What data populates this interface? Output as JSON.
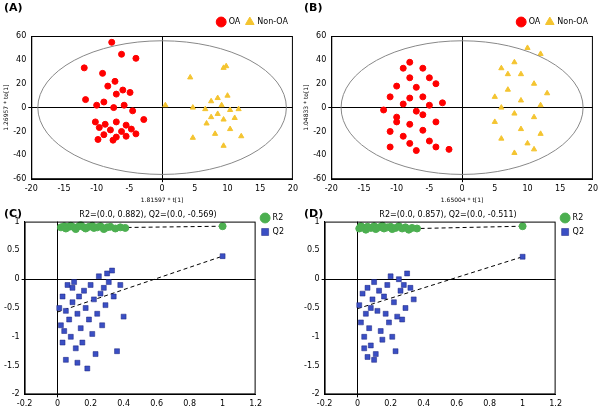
{
  "chart_data": [
    {
      "panel": "(A)",
      "type": "scatter",
      "x_label": "1.81597 * t[1]",
      "y_label": "1.26957 * to[1]",
      "xlim": [
        -20,
        20
      ],
      "xticks": [
        -20,
        -15,
        -10,
        -5,
        0,
        5,
        10,
        15,
        20
      ],
      "ylim": [
        -60,
        60
      ],
      "yticks": [
        -60,
        -40,
        -20,
        0,
        20,
        40,
        60
      ],
      "grid": false,
      "legend": "top-right",
      "ellipse": {
        "center": [
          0,
          0
        ],
        "radii": [
          19,
          56
        ]
      },
      "series": [
        {
          "name": "OA",
          "color": "#ff0000",
          "marker": "circle",
          "values": [
            [
              -7.7,
              54.7
            ],
            [
              -6.2,
              44.7
            ],
            [
              -4.0,
              41.3
            ],
            [
              -11.9,
              33.3
            ],
            [
              -9.1,
              28.7
            ],
            [
              -7.2,
              22
            ],
            [
              -8.3,
              18
            ],
            [
              -6.0,
              14.7
            ],
            [
              -7.0,
              11.3
            ],
            [
              -4.9,
              12.7
            ],
            [
              -11.7,
              6.7
            ],
            [
              -8.9,
              4.7
            ],
            [
              -10,
              2
            ],
            [
              -7.4,
              0
            ],
            [
              -5.8,
              2
            ],
            [
              -4.5,
              -2.7
            ],
            [
              -2.8,
              -10
            ],
            [
              -10.2,
              -12
            ],
            [
              -8.7,
              -14
            ],
            [
              -7,
              -12
            ],
            [
              -5.5,
              -14.7
            ],
            [
              -9.6,
              -16.7
            ],
            [
              -7.9,
              -18.7
            ],
            [
              -6.2,
              -20
            ],
            [
              -4.7,
              -18
            ],
            [
              -8.9,
              -22.7
            ],
            [
              -7,
              -24.7
            ],
            [
              -5.5,
              -24
            ],
            [
              -9.8,
              -26.7
            ],
            [
              -7.5,
              -27.3
            ],
            [
              -4.0,
              -22
            ]
          ]
        },
        {
          "name": "Non-OA",
          "color": "#f4c430",
          "marker": "triangle",
          "values": [
            [
              9.4,
              33.3
            ],
            [
              9.8,
              34.7
            ],
            [
              4.3,
              25.3
            ],
            [
              8.5,
              8
            ],
            [
              10,
              10
            ],
            [
              7.5,
              5.3
            ],
            [
              9.1,
              2
            ],
            [
              0.5,
              2
            ],
            [
              4.7,
              0
            ],
            [
              6.6,
              -1.3
            ],
            [
              10.4,
              -2
            ],
            [
              11.7,
              -1.3
            ],
            [
              8.5,
              -5.3
            ],
            [
              7.5,
              -8
            ],
            [
              9.4,
              -10
            ],
            [
              11.1,
              -8.7
            ],
            [
              6.8,
              -13.3
            ],
            [
              10.4,
              -18
            ],
            [
              8.1,
              -22
            ],
            [
              12.1,
              -24
            ],
            [
              9.4,
              -32
            ],
            [
              4.7,
              -25.3
            ]
          ]
        }
      ]
    },
    {
      "panel": "(B)",
      "type": "scatter",
      "x_label": "1.65004 * t[1]",
      "y_label": "1.04833 * to[1]",
      "xlim": [
        -20,
        20
      ],
      "xticks": [
        -20,
        -15,
        -10,
        -5,
        0,
        5,
        10,
        15,
        20
      ],
      "ylim": [
        -60,
        60
      ],
      "yticks": [
        -60,
        -40,
        -20,
        0,
        20,
        40,
        60
      ],
      "grid": false,
      "legend": "top-right",
      "ellipse": {
        "center": [
          0,
          0
        ],
        "radii": [
          18.5,
          56
        ]
      },
      "series": [
        {
          "name": "OA",
          "color": "#ff0000",
          "marker": "circle",
          "values": [
            [
              -8,
              38
            ],
            [
              -9,
              33
            ],
            [
              -6,
              33
            ],
            [
              -5,
              25
            ],
            [
              -8,
              25
            ],
            [
              -10,
              18
            ],
            [
              -7,
              17
            ],
            [
              -4,
              20
            ],
            [
              -11,
              9
            ],
            [
              -8,
              8
            ],
            [
              -6,
              9
            ],
            [
              -9,
              3
            ],
            [
              -5,
              2
            ],
            [
              -12,
              -2
            ],
            [
              -7,
              -3
            ],
            [
              -10,
              -8
            ],
            [
              -4,
              -12
            ],
            [
              -8,
              -14
            ],
            [
              -11,
              -20
            ],
            [
              -6,
              -19
            ],
            [
              -9,
              -24
            ],
            [
              -5,
              -28
            ],
            [
              -8,
              -30
            ],
            [
              -11,
              -33
            ],
            [
              -7,
              -36
            ],
            [
              -4,
              -33
            ],
            [
              -2,
              -35
            ],
            [
              -10,
              -12
            ],
            [
              -6,
              -6
            ],
            [
              -3,
              4
            ]
          ]
        },
        {
          "name": "Non-OA",
          "color": "#f4c430",
          "marker": "triangle",
          "values": [
            [
              10,
              50
            ],
            [
              12,
              45
            ],
            [
              8,
              38
            ],
            [
              6,
              33
            ],
            [
              9,
              28
            ],
            [
              11,
              20
            ],
            [
              7,
              15
            ],
            [
              13,
              12
            ],
            [
              5,
              9
            ],
            [
              9,
              6
            ],
            [
              12,
              2
            ],
            [
              6,
              0
            ],
            [
              8,
              -5
            ],
            [
              11,
              -8
            ],
            [
              5,
              -12
            ],
            [
              9,
              -18
            ],
            [
              12,
              -22
            ],
            [
              6,
              -26
            ],
            [
              10,
              -30
            ],
            [
              8,
              -38
            ],
            [
              7,
              28
            ],
            [
              11,
              -35
            ]
          ]
        }
      ]
    },
    {
      "panel": "(C)",
      "type": "scatter",
      "title": "R2=(0.0, 0.882), Q2=(0.0, -0.569)",
      "xlim": [
        -0.2,
        1.2
      ],
      "xticks": [
        -0.2,
        0,
        0.2,
        0.4,
        0.6,
        0.8,
        1,
        1.2
      ],
      "ylim": [
        -2,
        1
      ],
      "yticks": [
        -2,
        -1.5,
        -1,
        -0.5,
        0,
        0.5,
        1
      ],
      "grid": false,
      "legend": "right",
      "series": [
        {
          "name": "R2",
          "color": "#4caf50",
          "marker": "circle",
          "line_style": "dashed",
          "fit_line": [
            [
              0,
              0.882
            ],
            [
              1,
              0.92
            ]
          ],
          "values": [
            [
              0.02,
              0.9
            ],
            [
              0.04,
              0.92
            ],
            [
              0.05,
              0.88
            ],
            [
              0.07,
              0.91
            ],
            [
              0.08,
              0.93
            ],
            [
              0.1,
              0.9
            ],
            [
              0.11,
              0.87
            ],
            [
              0.13,
              0.92
            ],
            [
              0.14,
              0.94
            ],
            [
              0.16,
              0.9
            ],
            [
              0.17,
              0.88
            ],
            [
              0.19,
              0.91
            ],
            [
              0.21,
              0.93
            ],
            [
              0.22,
              0.89
            ],
            [
              0.24,
              0.9
            ],
            [
              0.26,
              0.92
            ],
            [
              0.28,
              0.87
            ],
            [
              0.3,
              0.9
            ],
            [
              0.32,
              0.91
            ],
            [
              0.35,
              0.88
            ],
            [
              0.38,
              0.9
            ],
            [
              0.41,
              0.89
            ],
            [
              1,
              0.92
            ]
          ]
        },
        {
          "name": "Q2",
          "color": "#3a4fc4",
          "marker": "square",
          "line_style": "dashed",
          "fit_line": [
            [
              0,
              -0.569
            ],
            [
              1,
              0.4
            ]
          ],
          "values": [
            [
              0.01,
              -0.5
            ],
            [
              0.02,
              -0.8
            ],
            [
              0.03,
              -0.3
            ],
            [
              0.04,
              -0.9
            ],
            [
              0.05,
              -0.55
            ],
            [
              0.06,
              -0.1
            ],
            [
              0.07,
              -0.7
            ],
            [
              0.08,
              -1.0
            ],
            [
              0.09,
              -0.4
            ],
            [
              0.1,
              -0.05
            ],
            [
              0.11,
              -1.2
            ],
            [
              0.12,
              -0.6
            ],
            [
              0.13,
              -0.3
            ],
            [
              0.14,
              -0.85
            ],
            [
              0.15,
              -1.1
            ],
            [
              0.16,
              -0.2
            ],
            [
              0.17,
              -0.5
            ],
            [
              0.18,
              -1.55
            ],
            [
              0.19,
              -0.7
            ],
            [
              0.2,
              -0.1
            ],
            [
              0.21,
              -0.95
            ],
            [
              0.22,
              -0.35
            ],
            [
              0.23,
              -1.3
            ],
            [
              0.24,
              -0.6
            ],
            [
              0.25,
              0.05
            ],
            [
              0.26,
              -0.25
            ],
            [
              0.27,
              -0.8
            ],
            [
              0.28,
              -0.15
            ],
            [
              0.29,
              -0.45
            ],
            [
              0.3,
              0.1
            ],
            [
              0.31,
              -0.05
            ],
            [
              0.33,
              0.15
            ],
            [
              0.34,
              -0.3
            ],
            [
              0.36,
              -1.25
            ],
            [
              0.38,
              -0.1
            ],
            [
              0.4,
              -0.65
            ],
            [
              0.05,
              -1.4
            ],
            [
              0.12,
              -1.45
            ],
            [
              0.09,
              -0.15
            ],
            [
              0.03,
              -1.1
            ],
            [
              1,
              0.4
            ]
          ]
        }
      ]
    },
    {
      "panel": "(D)",
      "type": "scatter",
      "title": "R2=(0.0, 0.857), Q2=(0.0, -0.511)",
      "xlim": [
        -0.2,
        1.2
      ],
      "xticks": [
        -0.2,
        0,
        0.2,
        0.4,
        0.6,
        0.8,
        1,
        1.2
      ],
      "ylim": [
        -2,
        1
      ],
      "yticks": [
        -2,
        -1.5,
        -1,
        -0.5,
        0,
        0.5,
        1
      ],
      "grid": false,
      "legend": "right",
      "series": [
        {
          "name": "R2",
          "color": "#4caf50",
          "marker": "circle",
          "line_style": "dashed",
          "fit_line": [
            [
              0,
              0.857
            ],
            [
              1,
              0.92
            ]
          ],
          "values": [
            [
              0.01,
              0.88
            ],
            [
              0.03,
              0.9
            ],
            [
              0.05,
              0.86
            ],
            [
              0.06,
              0.91
            ],
            [
              0.08,
              0.89
            ],
            [
              0.1,
              0.92
            ],
            [
              0.11,
              0.87
            ],
            [
              0.13,
              0.9
            ],
            [
              0.15,
              0.93
            ],
            [
              0.16,
              0.88
            ],
            [
              0.18,
              0.9
            ],
            [
              0.2,
              0.91
            ],
            [
              0.21,
              0.87
            ],
            [
              0.23,
              0.89
            ],
            [
              0.25,
              0.92
            ],
            [
              0.27,
              0.88
            ],
            [
              0.29,
              0.9
            ],
            [
              0.31,
              0.86
            ],
            [
              0.33,
              0.89
            ],
            [
              0.36,
              0.88
            ],
            [
              0.02,
              0.92
            ],
            [
              1,
              0.92
            ]
          ]
        },
        {
          "name": "Q2",
          "color": "#3a4fc4",
          "marker": "square",
          "line_style": "dashed",
          "fit_line": [
            [
              0,
              -0.511
            ],
            [
              1,
              0.39
            ]
          ],
          "values": [
            [
              0.01,
              -0.45
            ],
            [
              0.02,
              -0.75
            ],
            [
              0.03,
              -0.25
            ],
            [
              0.04,
              -1.0
            ],
            [
              0.05,
              -0.6
            ],
            [
              0.06,
              -0.15
            ],
            [
              0.07,
              -0.85
            ],
            [
              0.08,
              -1.15
            ],
            [
              0.09,
              -0.35
            ],
            [
              0.1,
              -0.05
            ],
            [
              0.11,
              -1.3
            ],
            [
              0.12,
              -0.55
            ],
            [
              0.13,
              -0.2
            ],
            [
              0.14,
              -0.9
            ],
            [
              0.15,
              -1.05
            ],
            [
              0.16,
              -0.3
            ],
            [
              0.17,
              -0.6
            ],
            [
              0.18,
              -0.1
            ],
            [
              0.19,
              -0.75
            ],
            [
              0.2,
              0.05
            ],
            [
              0.21,
              -1.0
            ],
            [
              0.22,
              -0.4
            ],
            [
              0.23,
              -1.25
            ],
            [
              0.24,
              -0.65
            ],
            [
              0.25,
              0.0
            ],
            [
              0.26,
              -0.2
            ],
            [
              0.27,
              -0.7
            ],
            [
              0.28,
              -0.1
            ],
            [
              0.29,
              -0.5
            ],
            [
              0.3,
              0.1
            ],
            [
              0.32,
              -0.15
            ],
            [
              0.34,
              -0.35
            ],
            [
              0.06,
              -1.35
            ],
            [
              0.1,
              -1.4
            ],
            [
              0.04,
              -1.2
            ],
            [
              0.08,
              -0.5
            ],
            [
              1,
              0.39
            ]
          ]
        }
      ]
    }
  ]
}
